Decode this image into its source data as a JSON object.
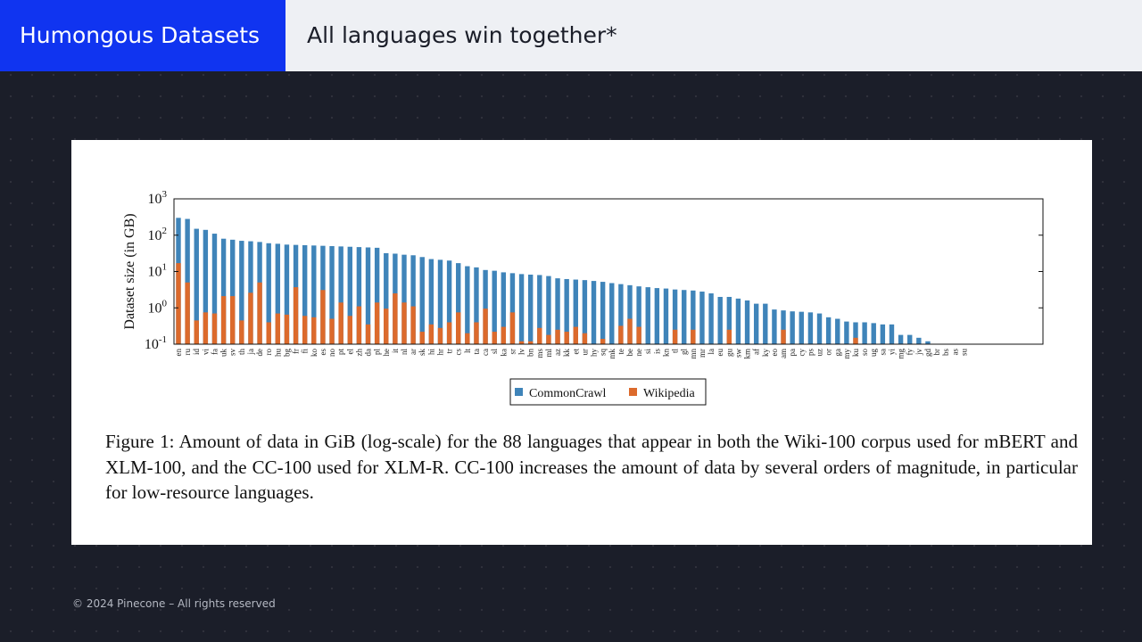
{
  "header": {
    "section": "Humongous Datasets",
    "title": "All languages win together*"
  },
  "figure": {
    "caption": "Figure 1: Amount of data in GiB (log-scale) for the 88 languages that appear in both the Wiki-100 corpus used for mBERT and XLM-100, and the CC-100 used for XLM-R. CC-100 increases the amount of data by several orders of magnitude, in particular for low-resource languages."
  },
  "footer": {
    "copyright": "© 2024 Pinecone – All rights reserved"
  },
  "colors": {
    "section_tab": "#1034f0",
    "commoncrawl": "#3f84b9",
    "wikipedia": "#dc6a2c"
  },
  "chart_data": {
    "type": "bar",
    "scale": "log",
    "ylabel": "Dataset size (in GB)",
    "ylim": [
      0.1,
      1000
    ],
    "yticks": [
      {
        "base": "10",
        "exp": "-1"
      },
      {
        "base": "10",
        "exp": "0"
      },
      {
        "base": "10",
        "exp": "1"
      },
      {
        "base": "10",
        "exp": "2"
      },
      {
        "base": "10",
        "exp": "3"
      }
    ],
    "legend_position": "bottom-center",
    "categories": [
      "en",
      "ru",
      "id",
      "vi",
      "fa",
      "uk",
      "sv",
      "th",
      "ja",
      "de",
      "ro",
      "hu",
      "bg",
      "fr",
      "fi",
      "ko",
      "es",
      "no",
      "pt",
      "el",
      "zh",
      "da",
      "pl",
      "he",
      "it",
      "nl",
      "ar",
      "sk",
      "hi",
      "hr",
      "tr",
      "cs",
      "lt",
      "ta",
      "ca",
      "sl",
      "ka",
      "sr",
      "lv",
      "bn",
      "ms",
      "ml",
      "az",
      "kk",
      "et",
      "ur",
      "hy",
      "sq",
      "mk",
      "te",
      "be",
      "ne",
      "si",
      "is",
      "kn",
      "tl",
      "gl",
      "mn",
      "mr",
      "la",
      "eu",
      "gu",
      "sw",
      "km",
      "af",
      "ky",
      "eo",
      "am",
      "pa",
      "cy",
      "ps",
      "uz",
      "or",
      "ga",
      "my",
      "ku",
      "so",
      "ug",
      "sa",
      "yi",
      "mg",
      "fy",
      "jv",
      "gd",
      "br",
      "bs",
      "as",
      "su"
    ],
    "series": [
      {
        "name": "CommonCrawl",
        "values": [
          300,
          280,
          150,
          140,
          110,
          80,
          75,
          70,
          68,
          65,
          60,
          58,
          55,
          54,
          53,
          52,
          51,
          50,
          49,
          48,
          47,
          46,
          45,
          32,
          31,
          29,
          28,
          25,
          22,
          21,
          20,
          17,
          14,
          13,
          11,
          10.5,
          9.5,
          9,
          8.5,
          8.2,
          8,
          7.5,
          6.5,
          6.2,
          6,
          5.8,
          5.5,
          5.2,
          4.8,
          4.5,
          4.2,
          3.9,
          3.7,
          3.5,
          3.4,
          3.2,
          3.1,
          3,
          2.8,
          2.5,
          2,
          2,
          1.8,
          1.6,
          1.3,
          1.3,
          0.9,
          0.85,
          0.8,
          0.78,
          0.75,
          0.7,
          0.55,
          0.5,
          0.42,
          0.4,
          0.4,
          0.38,
          0.35,
          0.35,
          0.18,
          0.18,
          0.15,
          0.12,
          0.1,
          0.1,
          0.1,
          0.1
        ]
      },
      {
        "name": "Wikipedia",
        "values": [
          17,
          5,
          0.45,
          0.75,
          0.7,
          2.1,
          2.1,
          0.45,
          2.6,
          5,
          0.4,
          0.7,
          0.65,
          3.7,
          0.6,
          0.55,
          3.1,
          0.5,
          1.4,
          0.6,
          1.1,
          0.35,
          1.4,
          0.95,
          2.5,
          1.4,
          1.1,
          0.22,
          0.35,
          0.28,
          0.4,
          0.75,
          0.2,
          0.4,
          0.95,
          0.22,
          0.3,
          0.75,
          0.12,
          0.12,
          0.28,
          0.18,
          0.25,
          0.22,
          0.3,
          0.2,
          0.1,
          0.14,
          0.1,
          0.32,
          0.5,
          0.3,
          0.1,
          0.1,
          0.1,
          0.25,
          0.1,
          0.25,
          0.1,
          0.1,
          0.1,
          0.25,
          0.1,
          0.1,
          0.1,
          0.1,
          0.1,
          0.25,
          0.1,
          0.1,
          0.1,
          0.1,
          0.1,
          0.1,
          0.1,
          0.15,
          0.1,
          0.1,
          0.1,
          0.1,
          0.1,
          0.1,
          0.1,
          0.1,
          0.1,
          0.1,
          0.1,
          0.1
        ]
      }
    ]
  }
}
